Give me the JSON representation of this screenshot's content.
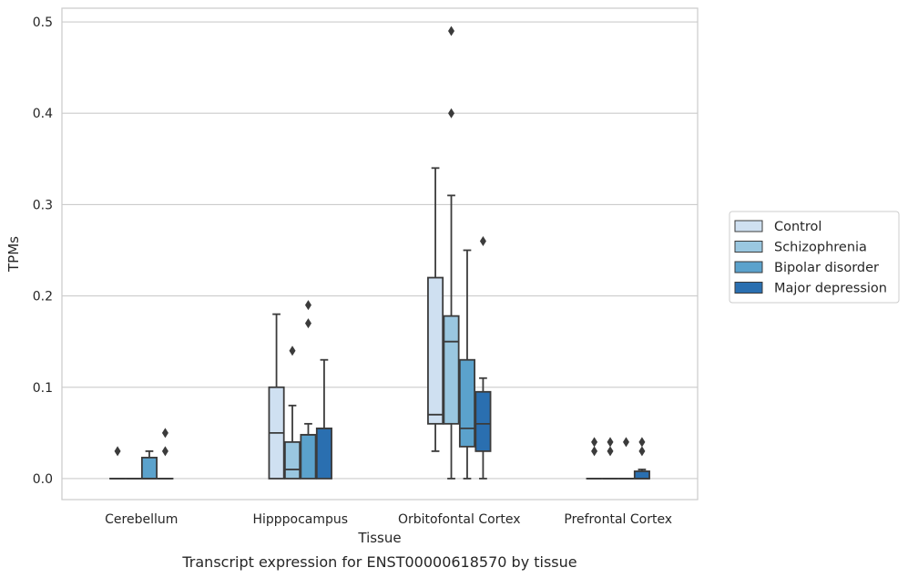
{
  "caption": "Transcript expression for ENST00000618570 by tissue",
  "chart_data": {
    "type": "box",
    "xlabel": "Tissue",
    "ylabel": "TPMs",
    "ylim": [
      -0.023,
      0.515
    ],
    "yticks": [
      0.0,
      0.1,
      0.2,
      0.3,
      0.4,
      0.5
    ],
    "ytick_labels": [
      "0.0",
      "0.1",
      "0.2",
      "0.3",
      "0.4",
      "0.5"
    ],
    "grid": "horizontal",
    "legend_position": "right",
    "categories": [
      "Cerebellum",
      "Hipppocampus",
      "Orbitofontal Cortex",
      "Prefrontal Cortex"
    ],
    "series": [
      {
        "name": "Control",
        "color": "#cfe0f1",
        "boxes": [
          {
            "whislo": 0.0,
            "q1": 0.0,
            "med": 0.0,
            "q3": 0.0,
            "whishi": 0.0,
            "fliers": [
              0.03
            ]
          },
          {
            "whislo": 0.0,
            "q1": 0.0,
            "med": 0.05,
            "q3": 0.1,
            "whishi": 0.18,
            "fliers": []
          },
          {
            "whislo": 0.03,
            "q1": 0.06,
            "med": 0.07,
            "q3": 0.22,
            "whishi": 0.34,
            "fliers": []
          },
          {
            "whislo": 0.0,
            "q1": 0.0,
            "med": 0.0,
            "q3": 0.0,
            "whishi": 0.0,
            "fliers": [
              0.03,
              0.04
            ]
          }
        ]
      },
      {
        "name": "Schizophrenia",
        "color": "#9ac7e0",
        "boxes": [
          {
            "whislo": 0.0,
            "q1": 0.0,
            "med": 0.0,
            "q3": 0.0,
            "whishi": 0.0,
            "fliers": []
          },
          {
            "whislo": 0.0,
            "q1": 0.0,
            "med": 0.01,
            "q3": 0.04,
            "whishi": 0.08,
            "fliers": [
              0.14
            ]
          },
          {
            "whislo": 0.0,
            "q1": 0.06,
            "med": 0.15,
            "q3": 0.178,
            "whishi": 0.31,
            "fliers": [
              0.4,
              0.49
            ]
          },
          {
            "whislo": 0.0,
            "q1": 0.0,
            "med": 0.0,
            "q3": 0.0,
            "whishi": 0.0,
            "fliers": [
              0.03,
              0.04
            ]
          }
        ]
      },
      {
        "name": "Bipolar disorder",
        "color": "#5ba2cc",
        "boxes": [
          {
            "whislo": 0.0,
            "q1": 0.0,
            "med": 0.0,
            "q3": 0.023,
            "whishi": 0.03,
            "fliers": []
          },
          {
            "whislo": 0.0,
            "q1": 0.0,
            "med": 0.048,
            "q3": 0.048,
            "whishi": 0.06,
            "fliers": [
              0.17,
              0.19
            ]
          },
          {
            "whislo": 0.0,
            "q1": 0.035,
            "med": 0.055,
            "q3": 0.13,
            "whishi": 0.25,
            "fliers": []
          },
          {
            "whislo": 0.0,
            "q1": 0.0,
            "med": 0.0,
            "q3": 0.0,
            "whishi": 0.0,
            "fliers": [
              0.04
            ]
          }
        ]
      },
      {
        "name": "Major depression",
        "color": "#2a6fb0",
        "boxes": [
          {
            "whislo": 0.0,
            "q1": 0.0,
            "med": 0.0,
            "q3": 0.0,
            "whishi": 0.0,
            "fliers": [
              0.03,
              0.05
            ]
          },
          {
            "whislo": 0.0,
            "q1": 0.0,
            "med": 0.055,
            "q3": 0.055,
            "whishi": 0.13,
            "fliers": []
          },
          {
            "whislo": 0.0,
            "q1": 0.03,
            "med": 0.06,
            "q3": 0.095,
            "whishi": 0.11,
            "fliers": [
              0.26
            ]
          },
          {
            "whislo": 0.0,
            "q1": 0.0,
            "med": 0.0,
            "q3": 0.008,
            "whishi": 0.01,
            "fliers": [
              0.03,
              0.04
            ]
          }
        ]
      }
    ]
  }
}
